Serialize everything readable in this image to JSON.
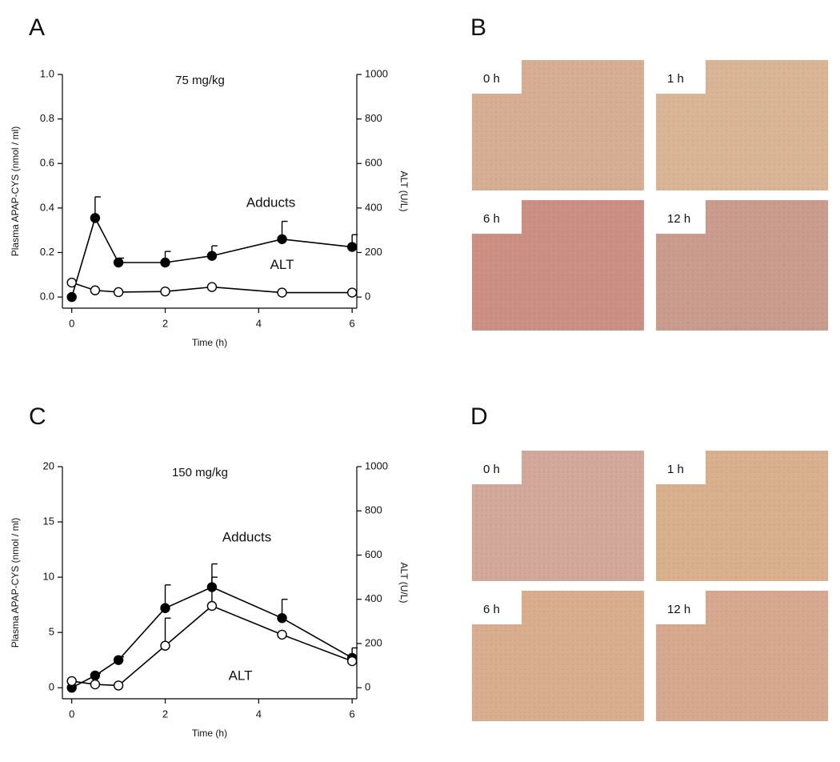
{
  "panel_labels": [
    "A",
    "B",
    "C",
    "D"
  ],
  "micrograph_labels": [
    [
      "0 h",
      "1 h",
      "6 h",
      "12 h"
    ],
    [
      "0 h",
      "1 h",
      "6 h",
      "12 h"
    ]
  ],
  "chart_data": [
    {
      "type": "line",
      "title": "75 mg/kg",
      "xlabel": "Time (h)",
      "ylabel": "Plasma APAP-CYS (nmol / ml)",
      "y2label": "ALT (U/L)",
      "x": [
        0,
        0.5,
        1,
        2,
        3,
        4.5,
        6
      ],
      "xlim": [
        -0.2,
        6.1
      ],
      "xticks": [
        0,
        2,
        4,
        6
      ],
      "ylim": [
        -0.05,
        1.0
      ],
      "yticks": [
        {
          "value": 0,
          "label": "0.0"
        },
        0.2,
        0.4,
        0.6,
        0.8,
        {
          "value": 1,
          "label": "1.0"
        }
      ],
      "y2lim": [
        -50,
        1000
      ],
      "y2ticks": [
        0,
        200,
        400,
        600,
        800,
        1000
      ],
      "series": [
        {
          "name": "Adducts",
          "color": "#000000",
          "marker": "filled",
          "values": [
            0,
            0.355,
            0.155,
            0.155,
            0.185,
            0.26,
            0.225
          ],
          "errors": [
            0,
            0.095,
            0.02,
            0.05,
            0.045,
            0.08,
            0.055
          ]
        },
        {
          "name": "ALT",
          "axis": "y2",
          "color": "#000000",
          "marker": "open",
          "values": [
            65,
            30,
            22,
            25,
            45,
            20,
            20
          ],
          "errors": [
            0,
            0,
            0,
            0,
            0,
            0,
            0
          ]
        }
      ]
    },
    {
      "type": "line",
      "title": "150 mg/kg",
      "xlabel": "Time (h)",
      "ylabel": "Plasma APAP-CYS (nmol / ml)",
      "y2label": "ALT (U/L)",
      "x": [
        0,
        0.5,
        1,
        2,
        3,
        4.5,
        6
      ],
      "xlim": [
        -0.2,
        6.1
      ],
      "xticks": [
        0,
        2,
        4,
        6
      ],
      "ylim": [
        -1,
        20
      ],
      "yticks": [
        0,
        5,
        10,
        15,
        20
      ],
      "y2lim": [
        -50,
        1000
      ],
      "y2ticks": [
        0,
        200,
        400,
        600,
        800,
        1000
      ],
      "series": [
        {
          "name": "Adducts",
          "color": "#000000",
          "marker": "filled",
          "values": [
            0,
            1.1,
            2.5,
            7.2,
            9.1,
            6.3,
            2.7
          ],
          "errors": [
            0,
            0.2,
            0.3,
            2.1,
            2.1,
            1.7,
            0.9
          ]
        },
        {
          "name": "ALT",
          "axis": "y2",
          "color": "#000000",
          "marker": "open",
          "values": [
            30,
            15,
            10,
            190,
            370,
            240,
            120
          ],
          "errors": [
            0,
            0,
            0,
            125,
            130,
            0,
            0
          ]
        }
      ]
    }
  ]
}
